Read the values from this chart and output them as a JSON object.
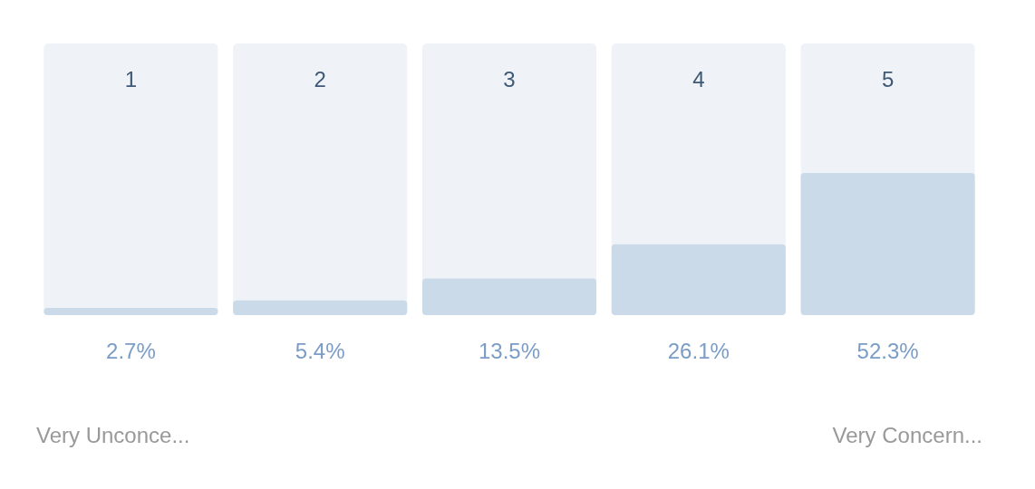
{
  "chart_data": {
    "type": "bar",
    "categories": [
      "1",
      "2",
      "3",
      "4",
      "5"
    ],
    "values": [
      2.7,
      5.4,
      13.5,
      26.1,
      52.3
    ],
    "value_labels": [
      "2.7%",
      "5.4%",
      "13.5%",
      "26.1%",
      "52.3%"
    ],
    "color": "#cbdae9",
    "ylim": [
      0,
      100
    ],
    "annotations": [
      "Very Unconce...",
      "Very Concern..."
    ]
  }
}
